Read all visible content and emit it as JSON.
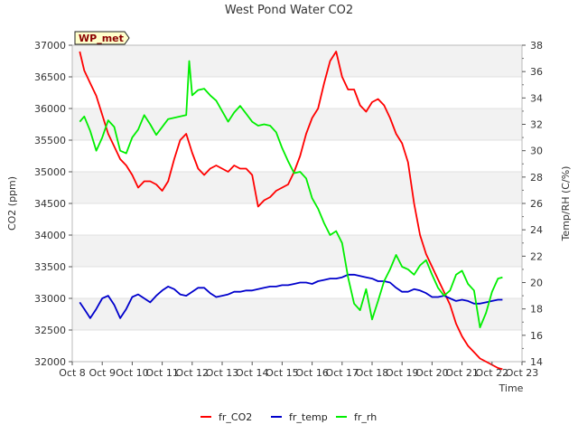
{
  "chart_data": {
    "type": "line",
    "title": "West Pond Water CO2",
    "xlabel": "Time",
    "ylabel": "CO2 (ppm)",
    "y2label": "Temp/RH (C/%)",
    "station_label": "WP_met",
    "x_ticks": [
      "Oct 8",
      "Oct 9",
      "Oct 10",
      "Oct 11",
      "Oct 12",
      "Oct 13",
      "Oct 14",
      "Oct 15",
      "Oct 16",
      "Oct 17",
      "Oct 18",
      "Oct 19",
      "Oct 20",
      "Oct 21",
      "Oct 22",
      "Oct 23"
    ],
    "xlim": [
      0,
      15
    ],
    "ylim": [
      32000,
      37000
    ],
    "y_ticks": [
      32000,
      32500,
      33000,
      33500,
      34000,
      34500,
      35000,
      35500,
      36000,
      36500,
      37000
    ],
    "y2lim": [
      14,
      38
    ],
    "y2_ticks": [
      14,
      16,
      18,
      20,
      22,
      24,
      26,
      28,
      30,
      32,
      34,
      36,
      38
    ],
    "grid": true,
    "legend_position": "bottom-center",
    "series": [
      {
        "name": "fr_CO2",
        "axis": "left",
        "color": "#ff0000",
        "x": [
          0.25,
          0.4,
          0.6,
          0.8,
          1.0,
          1.2,
          1.4,
          1.6,
          1.8,
          2.0,
          2.2,
          2.4,
          2.6,
          2.8,
          3.0,
          3.2,
          3.4,
          3.6,
          3.8,
          4.0,
          4.2,
          4.4,
          4.6,
          4.8,
          5.0,
          5.2,
          5.4,
          5.6,
          5.8,
          6.0,
          6.2,
          6.4,
          6.6,
          6.8,
          7.0,
          7.2,
          7.4,
          7.6,
          7.8,
          8.0,
          8.2,
          8.4,
          8.6,
          8.8,
          9.0,
          9.2,
          9.4,
          9.6,
          9.8,
          10.0,
          10.2,
          10.4,
          10.6,
          10.8,
          11.0,
          11.2,
          11.4,
          11.6,
          11.8,
          12.0,
          12.2,
          12.4,
          12.6,
          12.8,
          13.0,
          13.2,
          13.4,
          13.6,
          13.8,
          14.0,
          14.2,
          14.35
        ],
        "y": [
          36900,
          36600,
          36400,
          36200,
          35900,
          35600,
          35400,
          35200,
          35100,
          34950,
          34750,
          34850,
          34850,
          34800,
          34700,
          34850,
          35200,
          35500,
          35600,
          35300,
          35050,
          34950,
          35050,
          35100,
          35050,
          35000,
          35100,
          35050,
          35050,
          34950,
          34450,
          34550,
          34600,
          34700,
          34750,
          34800,
          35000,
          35250,
          35600,
          35850,
          36000,
          36400,
          36750,
          36900,
          36500,
          36300,
          36300,
          36050,
          35950,
          36100,
          36150,
          36050,
          35850,
          35600,
          35450,
          35150,
          34500,
          34000,
          33700,
          33500,
          33300,
          33100,
          32900,
          32600,
          32400,
          32250,
          32150,
          32050,
          32000,
          31950,
          31900,
          31880
        ]
      },
      {
        "name": "fr_temp",
        "axis": "right",
        "color": "#0000cc",
        "x": [
          0.25,
          0.4,
          0.6,
          0.8,
          1.0,
          1.2,
          1.4,
          1.6,
          1.8,
          2.0,
          2.2,
          2.4,
          2.6,
          2.8,
          3.0,
          3.2,
          3.4,
          3.6,
          3.8,
          4.0,
          4.2,
          4.4,
          4.6,
          4.8,
          5.0,
          5.2,
          5.4,
          5.6,
          5.8,
          6.0,
          6.2,
          6.4,
          6.6,
          6.8,
          7.0,
          7.2,
          7.4,
          7.6,
          7.8,
          8.0,
          8.2,
          8.4,
          8.6,
          8.8,
          9.0,
          9.2,
          9.4,
          9.6,
          9.8,
          10.0,
          10.2,
          10.4,
          10.6,
          10.8,
          11.0,
          11.2,
          11.4,
          11.6,
          11.8,
          12.0,
          12.2,
          12.4,
          12.6,
          12.8,
          13.0,
          13.2,
          13.4,
          13.6,
          13.8,
          14.0,
          14.2,
          14.35
        ],
        "y": [
          18.5,
          18.0,
          17.3,
          18.0,
          18.8,
          19.0,
          18.3,
          17.3,
          18.0,
          18.9,
          19.1,
          18.8,
          18.5,
          19.0,
          19.4,
          19.7,
          19.5,
          19.1,
          19.0,
          19.3,
          19.6,
          19.6,
          19.2,
          18.9,
          19.0,
          19.1,
          19.3,
          19.3,
          19.4,
          19.4,
          19.5,
          19.6,
          19.7,
          19.7,
          19.8,
          19.8,
          19.9,
          20.0,
          20.0,
          19.9,
          20.1,
          20.2,
          20.3,
          20.3,
          20.4,
          20.6,
          20.6,
          20.5,
          20.4,
          20.3,
          20.1,
          20.1,
          20.0,
          19.6,
          19.3,
          19.3,
          19.5,
          19.4,
          19.2,
          18.9,
          18.9,
          19.0,
          18.8,
          18.6,
          18.7,
          18.6,
          18.4,
          18.4,
          18.5,
          18.6,
          18.7,
          18.7
        ]
      },
      {
        "name": "fr_rh",
        "axis": "right",
        "color": "#00ee00",
        "x": [
          0.25,
          0.4,
          0.6,
          0.8,
          1.0,
          1.2,
          1.4,
          1.6,
          1.8,
          2.0,
          2.2,
          2.4,
          2.6,
          2.8,
          3.0,
          3.2,
          3.4,
          3.6,
          3.8,
          3.9,
          4.0,
          4.2,
          4.4,
          4.6,
          4.8,
          5.0,
          5.2,
          5.4,
          5.6,
          5.8,
          6.0,
          6.2,
          6.4,
          6.6,
          6.8,
          7.0,
          7.2,
          7.4,
          7.6,
          7.8,
          8.0,
          8.2,
          8.4,
          8.6,
          8.8,
          9.0,
          9.2,
          9.4,
          9.6,
          9.8,
          10.0,
          10.2,
          10.4,
          10.6,
          10.8,
          11.0,
          11.2,
          11.4,
          11.6,
          11.8,
          12.0,
          12.2,
          12.4,
          12.6,
          12.8,
          13.0,
          13.2,
          13.4,
          13.6,
          13.8,
          14.0,
          14.2,
          14.35
        ],
        "y": [
          32.2,
          32.6,
          31.5,
          30.0,
          31.0,
          32.3,
          31.8,
          30.0,
          29.8,
          31.0,
          31.6,
          32.7,
          32.0,
          31.2,
          31.8,
          32.4,
          32.5,
          32.6,
          32.7,
          36.8,
          34.2,
          34.6,
          34.7,
          34.2,
          33.8,
          33.0,
          32.2,
          32.9,
          33.4,
          32.8,
          32.2,
          31.9,
          32.0,
          31.9,
          31.4,
          30.2,
          29.2,
          28.3,
          28.4,
          27.9,
          26.4,
          25.6,
          24.5,
          23.6,
          23.9,
          23.0,
          20.4,
          18.4,
          17.9,
          19.5,
          17.2,
          18.6,
          20.1,
          21.0,
          22.1,
          21.2,
          21.0,
          20.6,
          21.3,
          21.7,
          20.6,
          19.6,
          19.0,
          19.4,
          20.6,
          20.9,
          19.9,
          19.4,
          16.6,
          17.7,
          19.3,
          20.3,
          20.4
        ]
      }
    ]
  }
}
